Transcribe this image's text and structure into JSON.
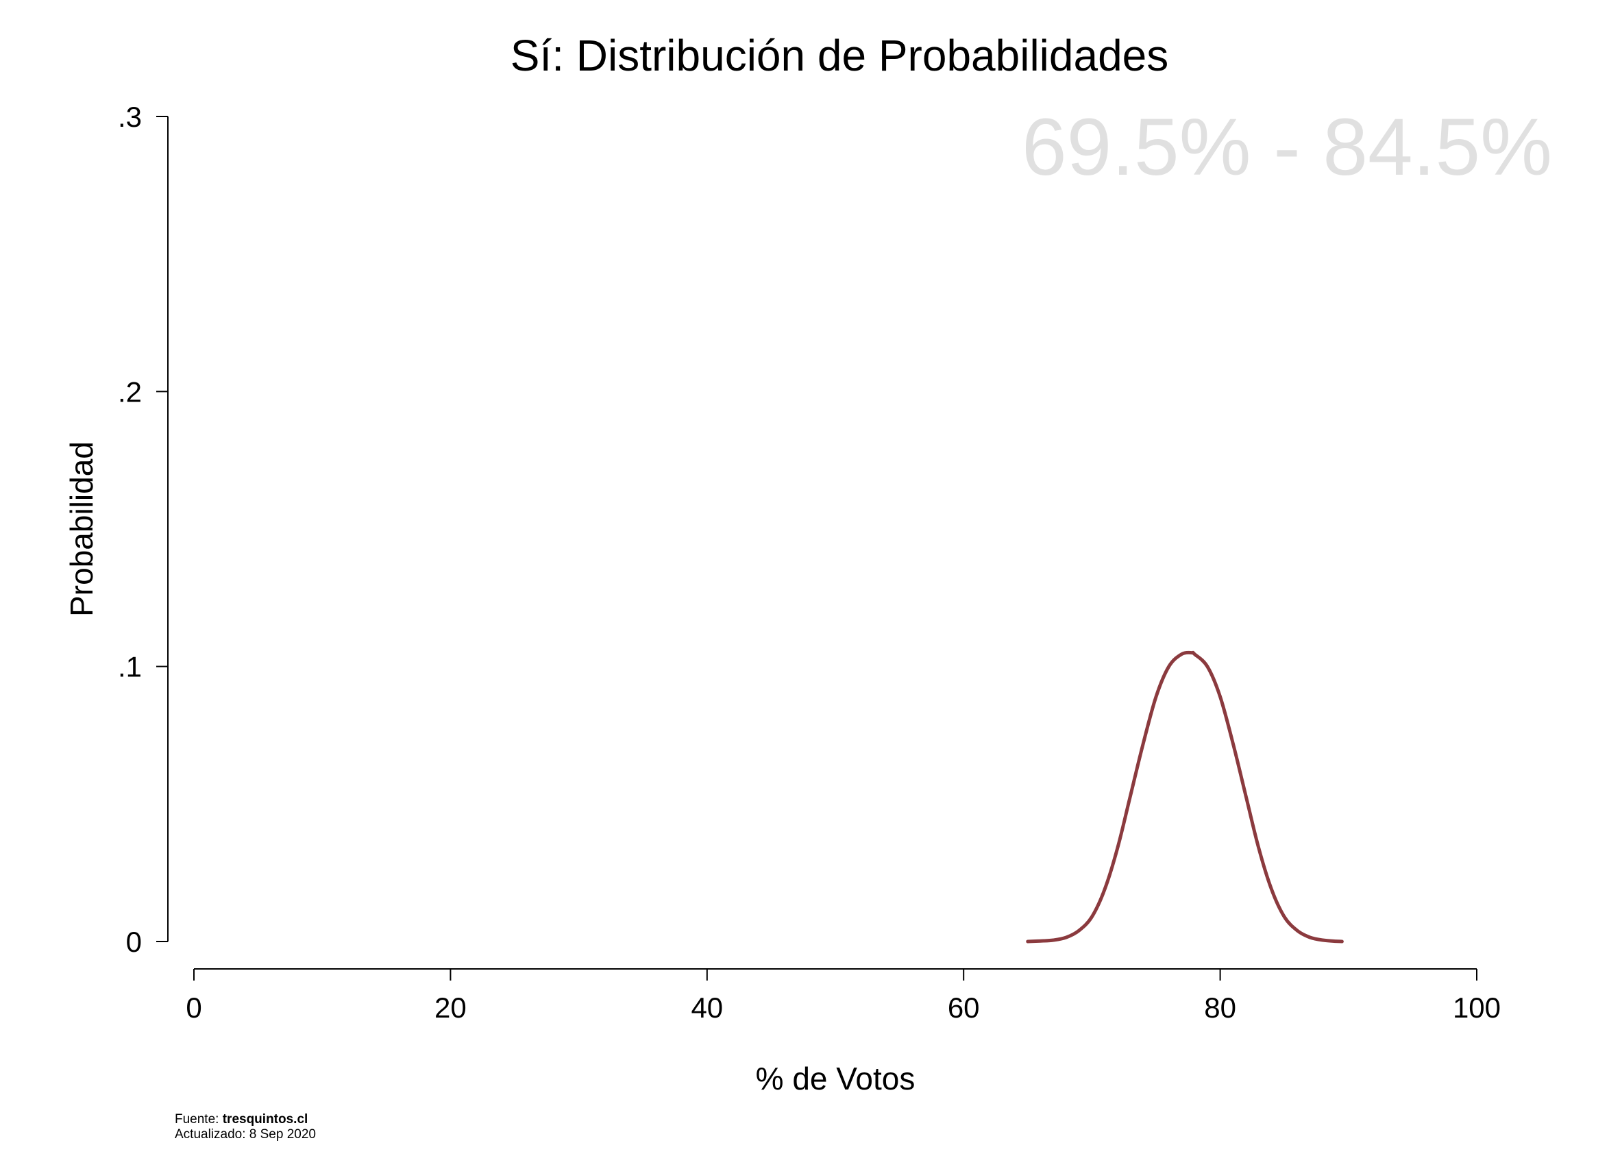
{
  "chart_data": {
    "type": "line",
    "title": "Sí: Distribución de Probabilidades",
    "xlabel": "% de Votos",
    "ylabel": "Probabilidad",
    "xlim": [
      0,
      100
    ],
    "ylim": [
      0,
      0.3
    ],
    "xticks": [
      0,
      20,
      40,
      60,
      80,
      100
    ],
    "xtick_labels": [
      "0",
      "20",
      "40",
      "60",
      "80",
      "100"
    ],
    "yticks": [
      0,
      0.1,
      0.2,
      0.3
    ],
    "ytick_labels": [
      "0",
      ".1",
      ".2",
      ".3"
    ],
    "annotation": "69.5% - 84.5%",
    "grid": false,
    "series": [
      {
        "name": "Sí",
        "color": "#8B3A3E",
        "x": [
          65,
          66,
          67,
          68,
          69,
          70,
          71,
          72,
          73,
          74,
          75,
          76,
          77,
          77.8,
          78,
          79,
          80,
          81,
          82,
          83,
          84,
          85,
          86,
          87,
          88,
          89,
          89.5
        ],
        "y": [
          0.0,
          0.0002,
          0.0005,
          0.0015,
          0.004,
          0.009,
          0.019,
          0.034,
          0.053,
          0.072,
          0.089,
          0.1,
          0.1045,
          0.105,
          0.1045,
          0.1,
          0.089,
          0.072,
          0.053,
          0.034,
          0.019,
          0.009,
          0.004,
          0.0015,
          0.0005,
          0.0001,
          0.0
        ]
      }
    ]
  },
  "footer": {
    "source_label": "Fuente: ",
    "source_value": "tresquintos.cl",
    "updated": "Actualizado: 8 Sep 2020"
  }
}
